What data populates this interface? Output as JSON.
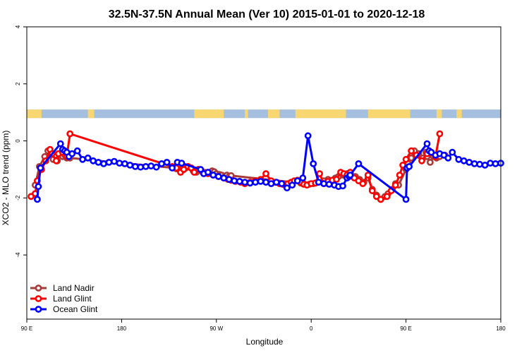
{
  "chart_data": {
    "type": "line",
    "title": "32.5N-37.5N Annual Mean (Ver 10)   2015-01-01 to 2020-12-18",
    "xlabel": "Longitude",
    "ylabel": "XCO2 - MLO trend (ppm)",
    "x_ticks": [
      {
        "value": 90,
        "label": "90 E"
      },
      {
        "value": 180,
        "label": "180"
      },
      {
        "value": 270,
        "label": "90 W"
      },
      {
        "value": 360,
        "label": "0"
      },
      {
        "value": 450,
        "label": "90 E"
      },
      {
        "value": 540,
        "label": "180"
      }
    ],
    "y_ticks": [
      {
        "value": -4,
        "label": "-4"
      },
      {
        "value": -2,
        "label": "-2"
      },
      {
        "value": 0,
        "label": "0"
      },
      {
        "value": 2,
        "label": "2"
      },
      {
        "value": 4,
        "label": "4"
      }
    ],
    "xlim": [
      90,
      540
    ],
    "ylim": [
      -6.25,
      4
    ],
    "grid": false,
    "legend_position": "bottom-left",
    "land_ocean_strip": {
      "y_range": [
        0.8,
        1.1
      ],
      "ocean_color": "#a5bfdf",
      "land_color": "#f8d772",
      "land_spans": [
        [
          90,
          104
        ],
        [
          148,
          154
        ],
        [
          249,
          277
        ],
        [
          297,
          300
        ],
        [
          319,
          330
        ],
        [
          345,
          393
        ],
        [
          414,
          454
        ],
        [
          479,
          484
        ],
        [
          498,
          503
        ]
      ]
    },
    "series": [
      {
        "name": "Land Nadir",
        "color": "#a83a3a",
        "x": [
          98,
          102,
          107,
          110,
          113,
          115,
          117,
          119,
          122,
          124,
          126,
          128,
          130,
          131,
          230,
          232,
          235,
          237,
          239,
          241,
          243,
          246,
          248,
          251,
          253,
          266,
          268,
          270,
          273,
          275,
          278,
          280,
          282,
          284,
          350,
          353,
          358,
          362,
          366,
          372,
          376,
          380,
          383,
          386,
          390,
          394,
          398,
          402,
          406,
          410,
          414,
          418,
          422,
          426,
          430,
          433,
          437,
          440,
          443,
          450,
          452,
          455,
          458,
          462,
          466,
          469,
          470,
          473,
          476,
          479,
          482,
          487
        ],
        "values": [
          -1.55,
          -0.9,
          -0.55,
          -0.35,
          -0.45,
          -0.65,
          -0.5,
          -0.7,
          -0.45,
          -0.55,
          -0.5,
          -0.6,
          -0.55,
          -0.6,
          -0.95,
          -0.98,
          -1.0,
          -1.05,
          -1.0,
          -0.95,
          -0.9,
          -0.95,
          -1.05,
          -1.1,
          -1.0,
          -1.05,
          -1.08,
          -1.15,
          -1.18,
          -1.2,
          -1.25,
          -1.2,
          -1.25,
          -1.22,
          -1.48,
          -1.5,
          -1.52,
          -1.5,
          -1.45,
          -1.4,
          -1.35,
          -1.4,
          -1.3,
          -1.25,
          -1.2,
          -1.15,
          -1.2,
          -1.25,
          -1.35,
          -1.45,
          -1.3,
          -1.7,
          -1.9,
          -2.05,
          -1.95,
          -1.85,
          -1.7,
          -1.5,
          -1.55,
          -1.0,
          -0.8,
          -0.6,
          -0.35,
          -0.45,
          -0.6,
          -0.4,
          -0.55,
          -0.75,
          -0.55,
          -0.6,
          -0.55,
          -0.5
        ]
      },
      {
        "name": "Land Glint",
        "color": "#ff0000",
        "x": [
          94,
          98,
          100,
          104,
          108,
          112,
          114,
          118,
          120,
          124,
          128,
          131,
          228,
          232,
          236,
          239,
          243,
          246,
          249,
          253,
          257,
          262,
          267,
          272,
          277,
          281,
          284,
          288,
          293,
          297,
          302,
          307,
          312,
          317,
          322,
          326,
          330,
          333,
          335,
          338,
          341,
          344,
          347,
          350,
          353,
          356,
          360,
          364,
          368,
          372,
          376,
          380,
          384,
          388,
          391,
          394,
          397,
          401,
          405,
          409,
          414,
          418,
          422,
          426,
          432,
          436,
          440,
          444,
          447,
          450,
          455,
          460,
          465,
          470,
          474,
          478,
          482
        ],
        "values": [
          -1.95,
          -1.85,
          -1.4,
          -1.0,
          -0.7,
          -0.3,
          -0.45,
          -0.7,
          -0.45,
          -0.4,
          -0.55,
          0.25,
          -0.9,
          -0.95,
          -1.1,
          -1.0,
          -0.9,
          -0.95,
          -1.1,
          -1.0,
          -1.1,
          -1.15,
          -1.2,
          -1.25,
          -1.3,
          -1.35,
          -1.38,
          -1.42,
          -1.45,
          -1.5,
          -1.45,
          -1.4,
          -1.35,
          -1.15,
          -1.4,
          -1.45,
          -1.5,
          -1.52,
          -1.55,
          -1.5,
          -1.45,
          -1.4,
          -1.38,
          -1.45,
          -1.52,
          -1.55,
          -1.5,
          -1.48,
          -1.15,
          -1.5,
          -1.42,
          -1.38,
          -1.35,
          -1.1,
          -1.15,
          -1.2,
          -1.1,
          -1.3,
          -1.4,
          -1.5,
          -1.2,
          -1.75,
          -1.95,
          -2.05,
          -1.95,
          -1.75,
          -1.55,
          -1.2,
          -0.85,
          -0.65,
          -0.35,
          -0.5,
          -0.7,
          -0.45,
          -0.4,
          -0.55,
          0.25
        ]
      },
      {
        "name": "Ocean Glint",
        "color": "#0000ff",
        "x": [
          100,
          101,
          103,
          122,
          124,
          126,
          128,
          130,
          133,
          138,
          143,
          148,
          153,
          158,
          163,
          168,
          173,
          178,
          183,
          188,
          193,
          198,
          203,
          208,
          213,
          218,
          223,
          228,
          233,
          237,
          255,
          258,
          262,
          267,
          272,
          277,
          282,
          287,
          292,
          297,
          302,
          307,
          312,
          317,
          322,
          327,
          332,
          337,
          342,
          347,
          352,
          357,
          362,
          367,
          372,
          377,
          382,
          386,
          390,
          394,
          396,
          397,
          405,
          450,
          451,
          453,
          470,
          472,
          474,
          478,
          482,
          486,
          490,
          494,
          500,
          505,
          510,
          515,
          520,
          525,
          530,
          535,
          540
        ],
        "values": [
          -2.05,
          -1.6,
          -0.95,
          -0.1,
          -0.3,
          -0.35,
          -0.4,
          -0.55,
          -0.45,
          -0.35,
          -0.65,
          -0.6,
          -0.7,
          -0.75,
          -0.8,
          -0.75,
          -0.72,
          -0.78,
          -0.8,
          -0.85,
          -0.9,
          -0.92,
          -0.9,
          -0.88,
          -0.92,
          -0.8,
          -0.75,
          -0.95,
          -0.75,
          -0.78,
          -1.0,
          -1.15,
          -1.1,
          -1.2,
          -1.25,
          -1.3,
          -1.35,
          -1.4,
          -1.42,
          -1.45,
          -1.48,
          -1.45,
          -1.42,
          -1.45,
          -1.5,
          -1.45,
          -1.5,
          -1.65,
          -1.55,
          -1.4,
          -1.3,
          0.18,
          -0.8,
          -1.45,
          -1.5,
          -1.52,
          -1.55,
          -1.6,
          -1.58,
          -1.3,
          -1.25,
          -1.2,
          -0.8,
          -2.05,
          -0.95,
          -0.9,
          -0.1,
          -0.35,
          -0.4,
          -0.5,
          -0.45,
          -0.5,
          -0.6,
          -0.4,
          -0.65,
          -0.7,
          -0.75,
          -0.8,
          -0.82,
          -0.85,
          -0.78,
          -0.8,
          -0.78
        ]
      }
    ]
  }
}
